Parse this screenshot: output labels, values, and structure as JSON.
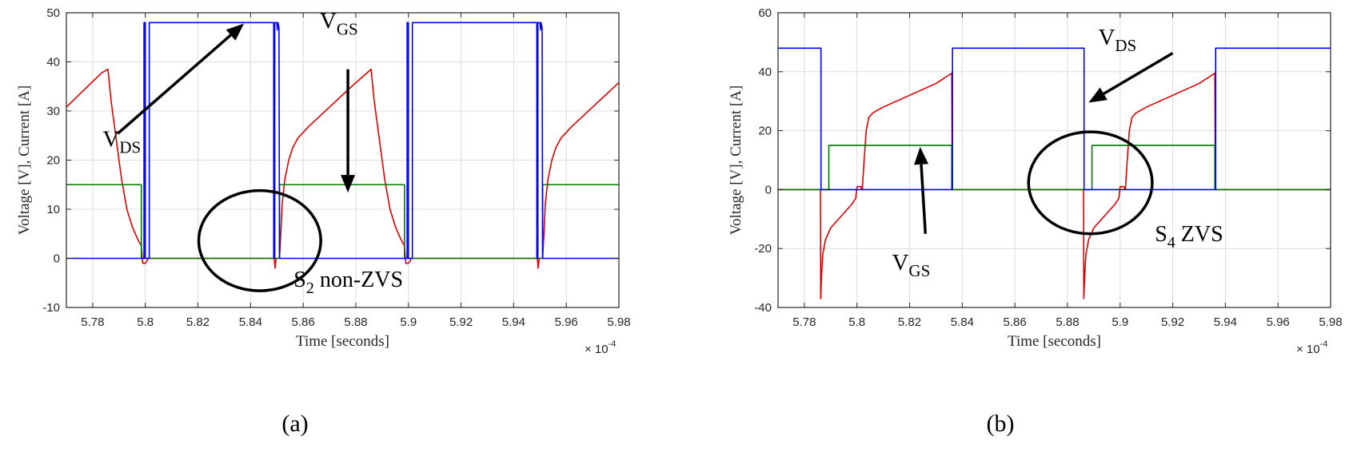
{
  "colors": {
    "vds": "#0000ff",
    "current": "#e00000",
    "vgs": "#007a00",
    "annotation": "#000000",
    "grid": "#dcdcdc"
  },
  "chart_data": [
    {
      "type": "line",
      "caption": "(a)",
      "xlabel": "Time [seconds]",
      "ylabel": "Voltage [V], Current [A]",
      "x_exponent": {
        "base": "× 10",
        "power": "-4"
      },
      "xlim": [
        5.77,
        5.98
      ],
      "ylim": [
        -10,
        50
      ],
      "xticks": [
        5.78,
        5.8,
        5.82,
        5.84,
        5.86,
        5.88,
        5.9,
        5.92,
        5.94,
        5.96,
        5.98
      ],
      "xtick_labels": [
        "5.78",
        "5.8",
        "5.82",
        "5.84",
        "5.86",
        "5.88",
        "5.9",
        "5.92",
        "5.94",
        "5.96",
        "5.98"
      ],
      "yticks": [
        -10,
        0,
        10,
        20,
        30,
        40,
        50
      ],
      "ytick_labels": [
        "-10",
        "0",
        "10",
        "20",
        "30",
        "40",
        "50"
      ],
      "grid": true,
      "series": [
        {
          "color": "#e00000",
          "points": [
            [
              5.77,
              30.8
            ],
            [
              5.775,
              33.4
            ],
            [
              5.78,
              36
            ],
            [
              5.7835,
              37.8
            ],
            [
              5.7858,
              38.5
            ],
            [
              5.787,
              32
            ],
            [
              5.789,
              24
            ],
            [
              5.791,
              16
            ],
            [
              5.793,
              10
            ],
            [
              5.795,
              6.5
            ],
            [
              5.797,
              4
            ],
            [
              5.7985,
              2.5
            ],
            [
              5.799,
              -1
            ],
            [
              5.8,
              -1
            ],
            [
              5.8007,
              -0.5
            ],
            [
              5.801,
              0
            ],
            [
              5.849,
              0
            ],
            [
              5.8493,
              -2
            ],
            [
              5.8497,
              0
            ],
            [
              5.851,
              0
            ],
            [
              5.8515,
              5
            ],
            [
              5.852,
              11
            ],
            [
              5.853,
              16
            ],
            [
              5.8545,
              20
            ],
            [
              5.856,
              22.5
            ],
            [
              5.858,
              24.5
            ],
            [
              5.862,
              26.8
            ],
            [
              5.87,
              30.8
            ],
            [
              5.878,
              34.8
            ],
            [
              5.8858,
              38.5
            ],
            [
              5.887,
              32
            ],
            [
              5.889,
              24
            ],
            [
              5.891,
              16
            ],
            [
              5.893,
              10
            ],
            [
              5.895,
              6.5
            ],
            [
              5.897,
              4
            ],
            [
              5.8985,
              2.5
            ],
            [
              5.899,
              -1
            ],
            [
              5.9,
              -1
            ],
            [
              5.9007,
              -0.5
            ],
            [
              5.901,
              0
            ],
            [
              5.949,
              0
            ],
            [
              5.9493,
              -2
            ],
            [
              5.9497,
              0
            ],
            [
              5.951,
              0
            ],
            [
              5.9515,
              5
            ],
            [
              5.952,
              11
            ],
            [
              5.953,
              16
            ],
            [
              5.9545,
              20
            ],
            [
              5.956,
              22.5
            ],
            [
              5.958,
              24.5
            ],
            [
              5.962,
              26.8
            ],
            [
              5.97,
              30.8
            ],
            [
              5.98,
              35.8
            ]
          ]
        },
        {
          "color": "#007a00",
          "points": [
            [
              5.77,
              15
            ],
            [
              5.7985,
              15
            ],
            [
              5.7985,
              0
            ],
            [
              5.851,
              0
            ],
            [
              5.851,
              15
            ],
            [
              5.8985,
              15
            ],
            [
              5.8985,
              0
            ],
            [
              5.951,
              0
            ],
            [
              5.951,
              15
            ],
            [
              5.98,
              15
            ]
          ]
        },
        {
          "color": "#0000ff",
          "points": [
            [
              5.77,
              0
            ],
            [
              5.7995,
              0
            ],
            [
              5.7995,
              48
            ],
            [
              5.8,
              48
            ],
            [
              5.8,
              0
            ],
            [
              5.8015,
              0
            ],
            [
              5.8015,
              48
            ],
            [
              5.8488,
              48
            ],
            [
              5.8488,
              0
            ],
            [
              5.8492,
              0
            ],
            [
              5.8492,
              48
            ],
            [
              5.85,
              48
            ],
            [
              5.8502,
              46.5
            ],
            [
              5.8504,
              48
            ],
            [
              5.8508,
              47
            ],
            [
              5.851,
              0
            ],
            [
              5.8995,
              0
            ],
            [
              5.8995,
              48
            ],
            [
              5.9,
              48
            ],
            [
              5.9,
              0
            ],
            [
              5.9015,
              0
            ],
            [
              5.9015,
              48
            ],
            [
              5.9488,
              48
            ],
            [
              5.9488,
              0
            ],
            [
              5.9492,
              0
            ],
            [
              5.9492,
              48
            ],
            [
              5.95,
              48
            ],
            [
              5.9502,
              46.5
            ],
            [
              5.9504,
              48
            ],
            [
              5.9508,
              47
            ],
            [
              5.951,
              0
            ],
            [
              5.98,
              0
            ]
          ]
        }
      ],
      "annotations": [
        {
          "kind": "text",
          "main": "V",
          "sub": "DS",
          "after": "",
          "x": 5.7838,
          "y": 22.8,
          "size": 29
        },
        {
          "kind": "text",
          "main": "V",
          "sub": "GS",
          "after": "",
          "x": 5.8663,
          "y": 46.8,
          "size": 29
        },
        {
          "kind": "text",
          "main": "S",
          "sub": "2",
          "after": " non-ZVS",
          "x": 5.8564,
          "y": -5.8,
          "size": 28
        },
        {
          "kind": "arrow",
          "x1": 5.7895,
          "y1": 25.4,
          "x2": 5.8375,
          "y2": 47.8
        },
        {
          "kind": "arrow",
          "x1": 5.877,
          "y1": 38.5,
          "x2": 5.877,
          "y2": 13.4
        },
        {
          "kind": "ellipse",
          "cx": 5.8435,
          "cy": 3.6,
          "rx": 0.0232,
          "ry": 10.2
        }
      ]
    },
    {
      "type": "line",
      "caption": "(b)",
      "xlabel": "Time [seconds]",
      "ylabel": "Voltage [V], Current [A]",
      "x_exponent": {
        "base": "× 10",
        "power": "-4"
      },
      "xlim": [
        5.77,
        5.98
      ],
      "ylim": [
        -40,
        60
      ],
      "xticks": [
        5.78,
        5.8,
        5.82,
        5.84,
        5.86,
        5.88,
        5.9,
        5.92,
        5.94,
        5.96,
        5.98
      ],
      "xtick_labels": [
        "5.78",
        "5.8",
        "5.82",
        "5.84",
        "5.86",
        "5.88",
        "5.9",
        "5.92",
        "5.94",
        "5.96",
        "5.98"
      ],
      "yticks": [
        -40,
        -20,
        0,
        20,
        40,
        60
      ],
      "ytick_labels": [
        "-40",
        "-20",
        "0",
        "20",
        "40",
        "60"
      ],
      "grid": true,
      "series": [
        {
          "color": "#e00000",
          "points": [
            [
              5.77,
              0
            ],
            [
              5.7861,
              0
            ],
            [
              5.7862,
              -37
            ],
            [
              5.7866,
              -28
            ],
            [
              5.787,
              -22
            ],
            [
              5.788,
              -17
            ],
            [
              5.79,
              -13
            ],
            [
              5.794,
              -9
            ],
            [
              5.798,
              -5
            ],
            [
              5.7995,
              -3
            ],
            [
              5.8,
              1
            ],
            [
              5.8015,
              1
            ],
            [
              5.8018,
              0
            ],
            [
              5.802,
              0
            ],
            [
              5.8027,
              10
            ],
            [
              5.8035,
              20
            ],
            [
              5.8045,
              24.5
            ],
            [
              5.806,
              26
            ],
            [
              5.81,
              28
            ],
            [
              5.82,
              32
            ],
            [
              5.83,
              36
            ],
            [
              5.836,
              39.5
            ],
            [
              5.8362,
              0
            ],
            [
              5.8861,
              0
            ],
            [
              5.8862,
              -37
            ],
            [
              5.8866,
              -28
            ],
            [
              5.887,
              -22
            ],
            [
              5.888,
              -17
            ],
            [
              5.89,
              -13
            ],
            [
              5.894,
              -9
            ],
            [
              5.898,
              -5
            ],
            [
              5.8995,
              -3
            ],
            [
              5.9,
              1
            ],
            [
              5.9015,
              1
            ],
            [
              5.9018,
              0
            ],
            [
              5.902,
              0
            ],
            [
              5.9027,
              10
            ],
            [
              5.9035,
              20
            ],
            [
              5.9045,
              24.5
            ],
            [
              5.906,
              26
            ],
            [
              5.91,
              28
            ],
            [
              5.92,
              32
            ],
            [
              5.93,
              36
            ],
            [
              5.936,
              39.5
            ],
            [
              5.9362,
              0
            ],
            [
              5.98,
              0
            ]
          ]
        },
        {
          "color": "#007a00",
          "points": [
            [
              5.77,
              0
            ],
            [
              5.7893,
              0
            ],
            [
              5.7893,
              15
            ],
            [
              5.836,
              15
            ],
            [
              5.836,
              0
            ],
            [
              5.8893,
              0
            ],
            [
              5.8893,
              15
            ],
            [
              5.936,
              15
            ],
            [
              5.936,
              0
            ],
            [
              5.98,
              0
            ]
          ]
        },
        {
          "color": "#0000ff",
          "points": [
            [
              5.77,
              48
            ],
            [
              5.7863,
              48
            ],
            [
              5.7863,
              0
            ],
            [
              5.8363,
              0
            ],
            [
              5.8363,
              48
            ],
            [
              5.8863,
              48
            ],
            [
              5.8863,
              0
            ],
            [
              5.9363,
              0
            ],
            [
              5.9363,
              48
            ],
            [
              5.98,
              48
            ]
          ]
        }
      ],
      "annotations": [
        {
          "kind": "text",
          "main": "V",
          "sub": "DS",
          "after": "",
          "x": 5.8917,
          "y": 49.2,
          "size": 29
        },
        {
          "kind": "text",
          "main": "V",
          "sub": "GS",
          "after": "",
          "x": 5.8133,
          "y": -27.2,
          "size": 29
        },
        {
          "kind": "text",
          "main": "S",
          "sub": "4",
          "after": " ZVS",
          "x": 5.9132,
          "y": -17.5,
          "size": 28
        },
        {
          "kind": "arrow",
          "x1": 5.92,
          "y1": 46.3,
          "x2": 5.888,
          "y2": 29.5
        },
        {
          "kind": "arrow",
          "x1": 5.826,
          "y1": -15,
          "x2": 5.824,
          "y2": 14.5
        },
        {
          "kind": "ellipse",
          "cx": 5.8887,
          "cy": 2.3,
          "rx": 0.0235,
          "ry": 17.3
        }
      ]
    }
  ]
}
